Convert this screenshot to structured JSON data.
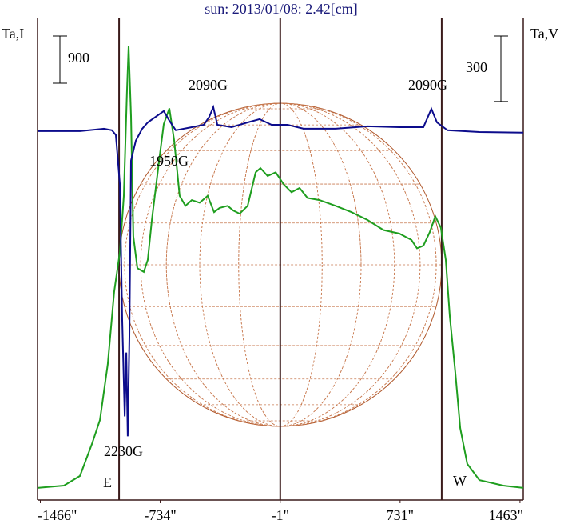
{
  "chart_data": {
    "type": "line",
    "title": "sun: 2013/01/08: 2.42[cm]",
    "xlim": [
      -1483,
      1483
    ],
    "xticks": [
      {
        "value": -1466,
        "label": "-1466\""
      },
      {
        "value": -734,
        "label": "-734\""
      },
      {
        "value": -1,
        "label": "-1\""
      },
      {
        "value": 731,
        "label": "731\""
      },
      {
        "value": 1463,
        "label": "1463\""
      }
    ],
    "ylim": [
      0,
      9200
    ],
    "y2lim": [
      -1690,
      520
    ],
    "y_scale_bar": 900,
    "y2_scale_bar": 300,
    "vlines": [
      -985,
      -1,
      985
    ],
    "disk_radius": 985,
    "annotations": [
      "2090G",
      "2090G",
      "1950G",
      "2230G",
      "E",
      "W"
    ],
    "series": [
      {
        "name": "Ta,I",
        "color": "#1f9e1f",
        "x": [
          -1483,
          -1322,
          -1224,
          -1151,
          -1102,
          -1054,
          -1015,
          -980,
          -956,
          -937,
          -927,
          -912,
          -898,
          -873,
          -834,
          -810,
          -785,
          -737,
          -712,
          -678,
          -649,
          -615,
          -580,
          -541,
          -493,
          -444,
          -405,
          -371,
          -322,
          -288,
          -249,
          -200,
          -151,
          -122,
          -78,
          -29,
          20,
          68,
          117,
          166,
          239,
          337,
          434,
          532,
          629,
          727,
          800,
          834,
          873,
          912,
          946,
          980,
          1010,
          1034,
          1068,
          1098,
          1141,
          1215,
          1361,
          1483
        ],
        "values": [
          230,
          275,
          460,
          1070,
          1525,
          2590,
          3970,
          4730,
          5800,
          7780,
          8660,
          7320,
          5030,
          4420,
          4350,
          4580,
          5340,
          6560,
          7170,
          7470,
          6860,
          5800,
          5610,
          5720,
          5670,
          5800,
          5490,
          5570,
          5610,
          5520,
          5460,
          5610,
          6250,
          6330,
          6180,
          6250,
          6020,
          5870,
          5950,
          5760,
          5720,
          5610,
          5490,
          5340,
          5150,
          5080,
          4960,
          4800,
          4850,
          5110,
          5410,
          5190,
          4580,
          3510,
          2440,
          1370,
          690,
          380,
          275,
          230
        ]
      },
      {
        "name": "Ta,V",
        "color": "#0c0c8c",
        "axis": "y2",
        "x": [
          -1483,
          -1224,
          -1078,
          -1029,
          -1005,
          -980,
          -966,
          -951,
          -941,
          -932,
          -922,
          -912,
          -883,
          -844,
          -810,
          -761,
          -712,
          -678,
          -639,
          -541,
          -468,
          -434,
          -410,
          -385,
          -298,
          -200,
          -127,
          -54,
          44,
          141,
          337,
          532,
          727,
          873,
          922,
          956,
          1020,
          1215,
          1483
        ],
        "values": [
          0,
          0,
          11,
          4,
          -18,
          -245,
          -867,
          -1307,
          -1014,
          -1398,
          -941,
          -135,
          -44,
          11,
          40,
          66,
          92,
          48,
          4,
          18,
          29,
          66,
          110,
          29,
          18,
          40,
          55,
          29,
          29,
          11,
          11,
          22,
          18,
          18,
          102,
          40,
          4,
          -4,
          -7
        ]
      }
    ]
  }
}
